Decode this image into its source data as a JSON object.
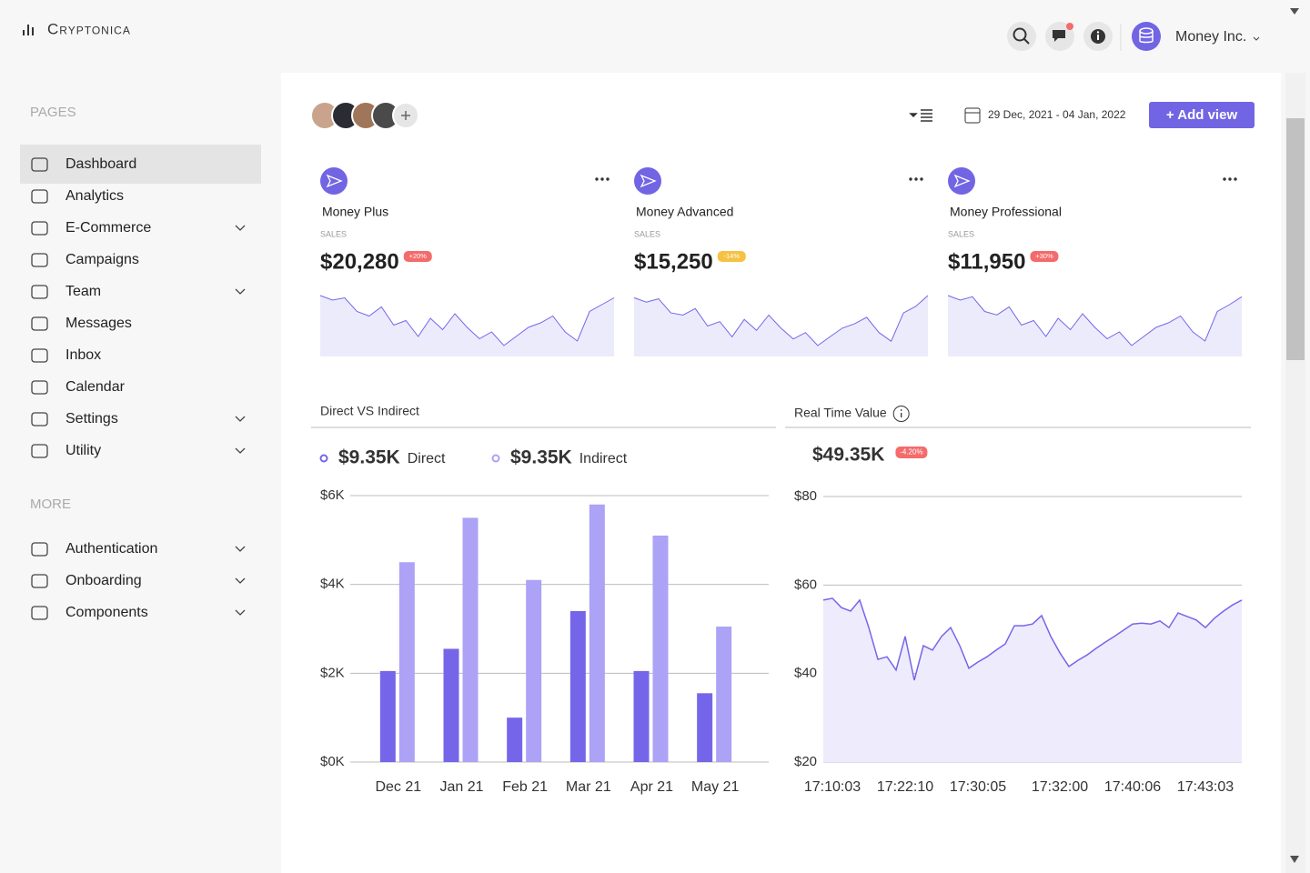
{
  "header": {
    "brand": "Cryptonica",
    "account": "Money Inc."
  },
  "sidebar": {
    "pages_heading": "PAGES",
    "pages": [
      {
        "label": "Dashboard",
        "active": true
      },
      {
        "label": "Analytics"
      },
      {
        "label": "E-Commerce",
        "submenu": true
      },
      {
        "label": "Campaigns"
      },
      {
        "label": "Team",
        "submenu": true
      },
      {
        "label": "Messages"
      },
      {
        "label": "Inbox"
      },
      {
        "label": "Calendar"
      },
      {
        "label": "Settings",
        "submenu": true
      },
      {
        "label": "Utility",
        "submenu": true
      }
    ],
    "more_heading": "MORE",
    "more": [
      {
        "label": "Authentication",
        "submenu": true
      },
      {
        "label": "Onboarding",
        "submenu": true
      },
      {
        "label": "Components",
        "submenu": true
      }
    ]
  },
  "toolbar": {
    "date_range": "29 Dec, 2021 - 04 Jan, 2022",
    "add_view": "+ Add view"
  },
  "cards": [
    {
      "title": "Money Plus",
      "label": "SALES",
      "value": "$20,280",
      "change": "+20%",
      "badge_color": "#f46b6b",
      "sparkline": [
        88,
        84,
        86,
        74,
        70,
        78,
        62,
        66,
        52,
        68,
        58,
        72,
        60,
        50,
        56,
        44,
        52,
        60,
        64,
        70,
        56,
        48,
        74,
        80,
        86
      ]
    },
    {
      "title": "Money Advanced",
      "label": "SALES",
      "value": "$15,250",
      "change": "-14%",
      "badge_color": "#f5c242",
      "sparkline": [
        86,
        82,
        85,
        72,
        70,
        76,
        60,
        64,
        50,
        66,
        56,
        70,
        58,
        48,
        54,
        42,
        50,
        58,
        62,
        68,
        54,
        46,
        72,
        78,
        88
      ]
    },
    {
      "title": "Money Professional",
      "label": "SALES",
      "value": "$11,950",
      "change": "+30%",
      "badge_color": "#f46b6b",
      "sparkline": [
        87,
        83,
        86,
        73,
        70,
        77,
        61,
        65,
        51,
        67,
        57,
        71,
        59,
        49,
        55,
        43,
        51,
        59,
        63,
        69,
        55,
        47,
        73,
        79,
        86
      ]
    }
  ],
  "chart_data": [
    {
      "type": "bar",
      "title": "Direct VS Indirect",
      "categories": [
        "Dec 21",
        "Jan 21",
        "Feb 21",
        "Mar 21",
        "Apr 21",
        "May 21"
      ],
      "series": [
        {
          "name": "Direct",
          "total": "$9.35K",
          "color": "#7566e9",
          "values": [
            2050,
            2550,
            1000,
            3400,
            2050,
            1550
          ]
        },
        {
          "name": "Indirect",
          "total": "$9.35K",
          "color": "#aca2f6",
          "values": [
            4500,
            5500,
            4100,
            5800,
            5100,
            3050
          ]
        }
      ],
      "ylim": [
        0,
        6000
      ],
      "yticks": [
        {
          "value": 0,
          "label": "$0K"
        },
        {
          "value": 2000,
          "label": "$2K"
        },
        {
          "value": 4000,
          "label": "$4K"
        },
        {
          "value": 6000,
          "label": "$6K"
        }
      ],
      "grid": true
    },
    {
      "type": "line",
      "title": "Real Time Value",
      "value": "$49.35K",
      "change": "-4.20%",
      "badge_color": "#f46b6b",
      "color": "#7566e9",
      "fill": "#eeecfc",
      "categories": [
        null,
        "17:10:03",
        null,
        null,
        null,
        null,
        null,
        null,
        null,
        "17:22:10",
        null,
        null,
        null,
        null,
        null,
        null,
        null,
        "17:30:05",
        null,
        null,
        null,
        null,
        null,
        null,
        null,
        null,
        "17:32:00",
        null,
        null,
        null,
        null,
        null,
        null,
        null,
        "17:40:06",
        null,
        null,
        null,
        null,
        null,
        null,
        null,
        "17:43:03",
        null,
        null,
        null,
        null
      ],
      "values": [
        56.6,
        57.0,
        54.9,
        54.1,
        56.6,
        50.4,
        43.2,
        43.8,
        40.8,
        48.4,
        38.5,
        46.3,
        45.3,
        48.4,
        50.4,
        46.3,
        41.2,
        42.6,
        43.8,
        45.3,
        46.7,
        50.8,
        50.8,
        51.2,
        53.1,
        48.4,
        44.7,
        41.6,
        43.0,
        44.2,
        45.7,
        47.1,
        48.4,
        49.8,
        51.2,
        51.4,
        51.2,
        51.9,
        50.4,
        53.7,
        52.9,
        52.1,
        50.4,
        52.5,
        54.1,
        55.5,
        56.6
      ],
      "ylim": [
        20,
        80
      ],
      "yticks": [
        {
          "value": 20,
          "label": "$20"
        },
        {
          "value": 40,
          "label": "$40"
        },
        {
          "value": 60,
          "label": "$60"
        },
        {
          "value": 80,
          "label": "$80"
        }
      ],
      "grid": true
    }
  ]
}
